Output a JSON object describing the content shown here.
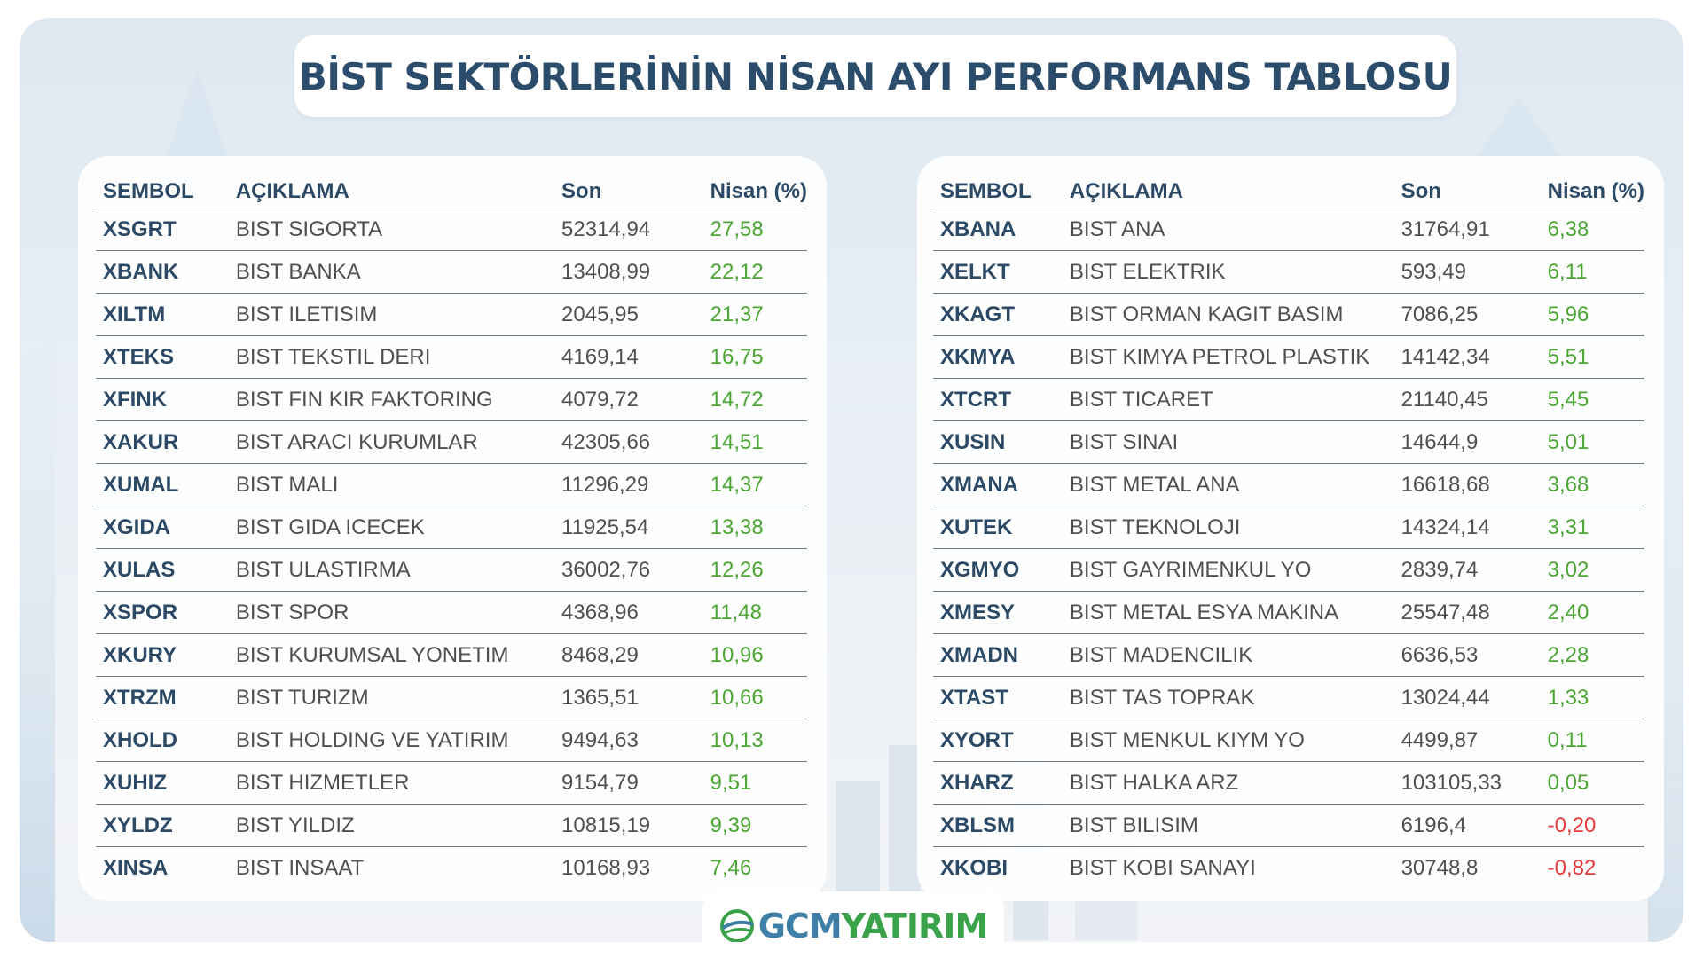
{
  "title": "BİST SEKTÖRLERİNİN NİSAN AYI PERFORMANS TABLOSU",
  "colors": {
    "title": "#2b4c6a",
    "positive": "#4ca634",
    "negative": "#e23b3b",
    "header": "#2c4a66"
  },
  "left_table": {
    "headers": {
      "symbol": "SEMBOL",
      "description": "AÇIKLAMA",
      "last": "Son",
      "change": "Nisan (%)"
    },
    "rows": [
      {
        "symbol": "XSGRT",
        "description": "BIST SIGORTA",
        "last": "52314,94",
        "change": "27,58",
        "trend": "positive"
      },
      {
        "symbol": "XBANK",
        "description": "BIST BANKA",
        "last": "13408,99",
        "change": "22,12",
        "trend": "positive"
      },
      {
        "symbol": "XILTM",
        "description": "BIST ILETISIM",
        "last": "2045,95",
        "change": "21,37",
        "trend": "positive"
      },
      {
        "symbol": "XTEKS",
        "description": "BIST TEKSTIL DERI",
        "last": "4169,14",
        "change": "16,75",
        "trend": "positive"
      },
      {
        "symbol": "XFINK",
        "description": "BIST FIN KIR FAKTORING",
        "last": "4079,72",
        "change": "14,72",
        "trend": "positive"
      },
      {
        "symbol": "XAKUR",
        "description": "BIST ARACI KURUMLAR",
        "last": "42305,66",
        "change": "14,51",
        "trend": "positive"
      },
      {
        "symbol": "XUMAL",
        "description": "BIST MALI",
        "last": "11296,29",
        "change": "14,37",
        "trend": "positive"
      },
      {
        "symbol": "XGIDA",
        "description": "BIST GIDA ICECEK",
        "last": "11925,54",
        "change": "13,38",
        "trend": "positive"
      },
      {
        "symbol": "XULAS",
        "description": "BIST ULASTIRMA",
        "last": "36002,76",
        "change": "12,26",
        "trend": "positive"
      },
      {
        "symbol": "XSPOR",
        "description": "BIST SPOR",
        "last": "4368,96",
        "change": "11,48",
        "trend": "positive"
      },
      {
        "symbol": "XKURY",
        "description": "BIST KURUMSAL YONETIM",
        "last": "8468,29",
        "change": "10,96",
        "trend": "positive"
      },
      {
        "symbol": "XTRZM",
        "description": "BIST TURIZM",
        "last": "1365,51",
        "change": "10,66",
        "trend": "positive"
      },
      {
        "symbol": "XHOLD",
        "description": "BIST HOLDING VE YATIRIM",
        "last": "9494,63",
        "change": "10,13",
        "trend": "positive"
      },
      {
        "symbol": "XUHIZ",
        "description": "BIST HIZMETLER",
        "last": "9154,79",
        "change": "9,51",
        "trend": "positive"
      },
      {
        "symbol": "XYLDZ",
        "description": "BIST YILDIZ",
        "last": "10815,19",
        "change": "9,39",
        "trend": "positive"
      },
      {
        "symbol": "XINSA",
        "description": "BIST INSAAT",
        "last": "10168,93",
        "change": "7,46",
        "trend": "positive"
      }
    ]
  },
  "right_table": {
    "headers": {
      "symbol": "SEMBOL",
      "description": "AÇIKLAMA",
      "last": "Son",
      "change": "Nisan (%)"
    },
    "rows": [
      {
        "symbol": "XBANA",
        "description": "BIST ANA",
        "last": "31764,91",
        "change": "6,38",
        "trend": "positive"
      },
      {
        "symbol": "XELKT",
        "description": "BIST ELEKTRIK",
        "last": "593,49",
        "change": "6,11",
        "trend": "positive"
      },
      {
        "symbol": "XKAGT",
        "description": "BIST ORMAN KAGIT BASIM",
        "last": "7086,25",
        "change": "5,96",
        "trend": "positive"
      },
      {
        "symbol": "XKMYA",
        "description": "BIST KIMYA PETROL PLASTIK",
        "last": "14142,34",
        "change": "5,51",
        "trend": "positive"
      },
      {
        "symbol": "XTCRT",
        "description": "BIST TICARET",
        "last": "21140,45",
        "change": "5,45",
        "trend": "positive"
      },
      {
        "symbol": "XUSIN",
        "description": "BIST SINAI",
        "last": "14644,9",
        "change": "5,01",
        "trend": "positive"
      },
      {
        "symbol": "XMANA",
        "description": "BIST METAL ANA",
        "last": "16618,68",
        "change": "3,68",
        "trend": "positive"
      },
      {
        "symbol": "XUTEK",
        "description": "BIST TEKNOLOJI",
        "last": "14324,14",
        "change": "3,31",
        "trend": "positive"
      },
      {
        "symbol": "XGMYO",
        "description": "BIST GAYRIMENKUL YO",
        "last": "2839,74",
        "change": "3,02",
        "trend": "positive"
      },
      {
        "symbol": "XMESY",
        "description": "BIST METAL ESYA MAKINA",
        "last": "25547,48",
        "change": "2,40",
        "trend": "positive"
      },
      {
        "symbol": "XMADN",
        "description": "BIST MADENCILIK",
        "last": "6636,53",
        "change": "2,28",
        "trend": "positive"
      },
      {
        "symbol": "XTAST",
        "description": "BIST TAS TOPRAK",
        "last": "13024,44",
        "change": "1,33",
        "trend": "positive"
      },
      {
        "symbol": "XYORT",
        "description": "BIST MENKUL KIYM YO",
        "last": "4499,87",
        "change": "0,11",
        "trend": "positive"
      },
      {
        "symbol": "XHARZ",
        "description": "BIST HALKA ARZ",
        "last": "103105,33",
        "change": "0,05",
        "trend": "positive"
      },
      {
        "symbol": "XBLSM",
        "description": "BIST BILISIM",
        "last": "6196,4",
        "change": "-0,20",
        "trend": "negative"
      },
      {
        "symbol": "XKOBI",
        "description": "BIST KOBI SANAYI",
        "last": "30748,8",
        "change": "-0,82",
        "trend": "negative"
      }
    ]
  },
  "logo": {
    "part1": "GCM",
    "part2": "YATIRIM",
    "icon": "globe-swoosh-icon"
  }
}
